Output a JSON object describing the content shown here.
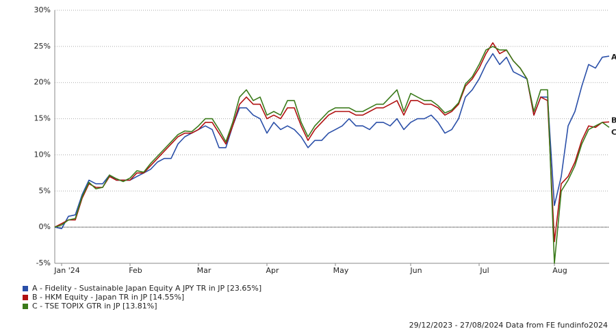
{
  "chart_data": {
    "type": "line",
    "categories": [
      null,
      "Jan '24",
      null,
      null,
      null,
      null,
      null,
      null,
      null,
      null,
      null,
      "Feb",
      null,
      null,
      null,
      null,
      null,
      null,
      null,
      null,
      null,
      "Mar",
      null,
      null,
      null,
      null,
      null,
      null,
      null,
      null,
      null,
      "Apr",
      null,
      null,
      null,
      null,
      null,
      null,
      null,
      null,
      null,
      "May",
      null,
      null,
      null,
      null,
      null,
      null,
      null,
      null,
      null,
      null,
      "Jun",
      null,
      null,
      null,
      null,
      null,
      null,
      null,
      null,
      null,
      "Jul",
      null,
      null,
      null,
      null,
      null,
      null,
      null,
      null,
      null,
      null,
      "Aug",
      null,
      null,
      null,
      null,
      null,
      null,
      null,
      null
    ],
    "ylim": [
      -5,
      30
    ],
    "yticks": [
      {
        "value": -5,
        "label": "-5%"
      },
      {
        "value": 0,
        "label": "0%"
      },
      {
        "value": 5,
        "label": "5%"
      },
      {
        "value": 10,
        "label": "10%"
      },
      {
        "value": 15,
        "label": "15%"
      },
      {
        "value": 20,
        "label": "20%"
      },
      {
        "value": 25,
        "label": "25%"
      },
      {
        "value": 30,
        "label": "30%"
      }
    ],
    "grid": true,
    "zero_line": true,
    "series": [
      {
        "name": "A - Fidelity - Sustainable Japan Equity A JPY TR in JP [23.65%]",
        "label": "A",
        "color": "#2a4fa8",
        "values": [
          0,
          -0.2,
          1.5,
          1.7,
          4.5,
          6.5,
          6,
          6,
          7.2,
          6.5,
          6.5,
          6.5,
          7,
          7.5,
          8,
          9,
          9.5,
          9.5,
          11.5,
          12.5,
          13,
          13.5,
          14,
          13.5,
          11,
          11,
          14,
          16.5,
          16.5,
          15.5,
          15,
          13,
          14.5,
          13.5,
          14,
          13.5,
          12.5,
          11,
          12,
          12,
          13,
          13.5,
          14,
          15,
          14,
          14,
          13.5,
          14.5,
          14.5,
          14,
          15,
          13.5,
          14.5,
          15,
          15,
          15.5,
          14.5,
          13,
          13.5,
          15,
          18,
          19,
          20.5,
          22.5,
          24,
          22.5,
          23.5,
          21.5,
          21,
          20.5,
          15.5,
          18,
          18,
          3,
          7,
          14,
          16,
          19.5,
          22.5,
          22,
          23.5,
          23.65
        ]
      },
      {
        "name": "B - HKM Equity - Japan TR in JP [14.55%]",
        "label": "B",
        "color": "#b01010",
        "values": [
          0,
          0.5,
          1,
          1,
          4,
          6,
          5.5,
          5.5,
          7,
          6.5,
          6.5,
          6.5,
          7.5,
          7.5,
          8.5,
          9.5,
          10.5,
          11.5,
          12.5,
          13,
          13,
          13.5,
          14.5,
          14.5,
          13,
          11.5,
          14,
          17,
          18,
          17,
          17,
          15,
          15.5,
          15,
          16.5,
          16.5,
          14,
          12,
          13.5,
          14.5,
          15.5,
          16,
          16,
          16,
          15.5,
          15.5,
          16,
          16.5,
          16.5,
          17,
          17.5,
          15.5,
          17.5,
          17.5,
          17,
          17,
          16.5,
          15.5,
          16,
          17,
          19.5,
          20.5,
          22,
          24,
          25.5,
          24,
          24.5,
          23,
          22,
          20.5,
          15.5,
          18,
          17.5,
          -2,
          6,
          7,
          9,
          12,
          14,
          13.8,
          14.5,
          14.55
        ]
      },
      {
        "name": "C - TSE TOPIX GTR in JP [13.81%]",
        "label": "C",
        "color": "#3a7a1a",
        "values": [
          0,
          0.3,
          1,
          1.2,
          4.2,
          6.2,
          5.3,
          5.5,
          7.2,
          6.7,
          6.3,
          6.8,
          7.8,
          7.6,
          8.8,
          9.8,
          10.8,
          11.8,
          12.8,
          13.3,
          13.2,
          14,
          15,
          15,
          13.5,
          11.8,
          14.5,
          18,
          19,
          17.5,
          18,
          15.5,
          16,
          15.5,
          17.5,
          17.5,
          14.5,
          12.5,
          14,
          15,
          16,
          16.5,
          16.5,
          16.5,
          16,
          16,
          16.5,
          17,
          17,
          18,
          19,
          16,
          18.5,
          18,
          17.5,
          17.5,
          16.8,
          15.8,
          16.2,
          17.2,
          19.8,
          20.8,
          22.5,
          24.5,
          25,
          24.5,
          24.5,
          23,
          22,
          20.5,
          16,
          19,
          19,
          -5,
          5,
          6.5,
          8.5,
          11.5,
          13.5,
          14,
          14.5,
          13.81
        ]
      }
    ],
    "footer": "29/12/2023 - 27/08/2024 Data from FE fundinfo2024"
  }
}
